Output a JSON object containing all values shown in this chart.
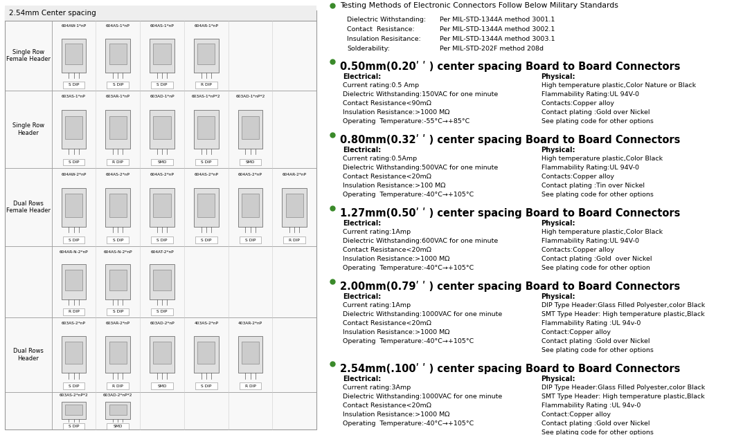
{
  "figsize": [
    10.6,
    6.29
  ],
  "dpi": 100,
  "left_panel": {
    "title": "2.54mm Center spacing",
    "rows": [
      {
        "label": "Single Row\nFemale Header",
        "items": [
          {
            "code": "604AW-1*nP",
            "mount": "S DIP"
          },
          {
            "code": "604AS-1*nP",
            "mount": "S DIP"
          },
          {
            "code": "604AS-1*nP",
            "mount": "S DIP"
          },
          {
            "code": "604AR-1*nP",
            "mount": "R DIP"
          },
          {
            "code": "",
            "mount": ""
          },
          {
            "code": "",
            "mount": ""
          }
        ]
      },
      {
        "label": "Single Row\nHeader",
        "items": [
          {
            "code": "603AS-1*nP",
            "mount": "S DIP"
          },
          {
            "code": "603AR-1*nP",
            "mount": "R DIP"
          },
          {
            "code": "603AD-1*nP",
            "mount": "SMD"
          },
          {
            "code": "603AS-1*nP*2",
            "mount": "S DIP"
          },
          {
            "code": "603AD-1*nP*2",
            "mount": "SMD"
          },
          {
            "code": "",
            "mount": ""
          }
        ]
      },
      {
        "label": "Dual Rows\nFemale Header",
        "items": [
          {
            "code": "604AW-2*nP",
            "mount": "S DIP"
          },
          {
            "code": "604AS-2*nP",
            "mount": "S DIP"
          },
          {
            "code": "604AS-2*nP",
            "mount": "S DIP"
          },
          {
            "code": "604AS-2*nP",
            "mount": "S DIP"
          },
          {
            "code": "604AS-2*nP",
            "mount": "S DIP"
          },
          {
            "code": "604AR-2*nP",
            "mount": "R DIP"
          }
        ]
      },
      {
        "label": "",
        "items": [
          {
            "code": "604AR-N-2*nP",
            "mount": "R DIP"
          },
          {
            "code": "604AS-N-2*nP",
            "mount": "S DIP"
          },
          {
            "code": "604AT-2*nP",
            "mount": "S DIP"
          },
          {
            "code": "",
            "mount": ""
          },
          {
            "code": "",
            "mount": ""
          },
          {
            "code": "",
            "mount": ""
          }
        ]
      },
      {
        "label": "Dual Rows\nHeader",
        "items": [
          {
            "code": "603AS-2*nP",
            "mount": "S DIP"
          },
          {
            "code": "603AR-2*nP",
            "mount": "R DIP"
          },
          {
            "code": "603AD-2*nP",
            "mount": "SMD"
          },
          {
            "code": "403AS-2*nP",
            "mount": "S DIP"
          },
          {
            "code": "403AR-2*nP",
            "mount": "R DIP"
          },
          {
            "code": "",
            "mount": ""
          }
        ]
      },
      {
        "label": "",
        "items": [
          {
            "code": "603AS-2*nP*2",
            "mount": "S DIP"
          },
          {
            "code": "603AD-2*nP*2",
            "mount": "SMD"
          },
          {
            "code": "",
            "mount": ""
          },
          {
            "code": "",
            "mount": ""
          },
          {
            "code": "",
            "mount": ""
          },
          {
            "code": "",
            "mount": ""
          }
        ]
      }
    ]
  },
  "right_panel": {
    "bullet_color": "#3a8a2a",
    "header_section": {
      "title": "Testing Methods of Electronic Connectors Follow Below Military Standards",
      "items": [
        {
          "label": "Dielectric Withstanding:",
          "value": "Per MIL-STD-1344A method 3001.1"
        },
        {
          "label": "Contact  Resistance:",
          "value": "Per MIL-STD-1344A method 3002.1"
        },
        {
          "label": "Insulation Resisitance:",
          "value": "Per MIL-STD-1344A method 3003.1"
        },
        {
          "label": "Solderability:",
          "value": "Per MIL-STD-202F method 208d"
        }
      ]
    },
    "connectors": [
      {
        "title": "0.50mm(0.20ʹ ʹ ) center spacing Board to Board Connectors",
        "electrical": [
          "Current rating:0.5 Amp",
          "Dielectric Withstanding:150VAC for one minute",
          "Contact Resistance<90mΩ",
          "Insulation Resistance:>1000 MΩ",
          "Operating  Temperature:-55°C→+85°C"
        ],
        "physical": [
          "High temperature plastic,Color Nature or Black",
          "Flammability Rating:UL 94V-0",
          "Contacts:Copper alloy",
          "Contact plating :Gold over Nickel",
          "See plating code for other options"
        ]
      },
      {
        "title": "0.80mm(0.32ʹ ʹ ) center spacing Board to Board Connectors",
        "electrical": [
          "Current rating:0.5Amp",
          "Dielectric Withstanding:500VAC for one minute",
          "Contact Resistance<20mΩ",
          "Insulation Resistance:>100 MΩ",
          "Operating  Temperature:-40°C→+105°C"
        ],
        "physical": [
          "High temperature plastic,Color Black",
          "Flammability Rating:UL 94V-0",
          "Contacts:Copper alloy",
          "Contact plating :Tin over Nickel",
          "See plating code for other options"
        ]
      },
      {
        "title": "1.27mm(0.50ʹ ʹ ) center spacing Board to Board Connectors",
        "electrical": [
          "Current rating:1Amp",
          "Dielectric Withstanding:600VAC for one minute",
          "Contact Resistance<20mΩ",
          "Insulation Resistance:>1000 MΩ",
          "Operating  Temperature:-40°C→+105°C"
        ],
        "physical": [
          "High temperature plastic,Color Black",
          "Flammability Rating:UL 94V-0",
          "Contacts:Copper alloy",
          "Contact plating :Gold  over Nickel",
          "See plating code for other option"
        ]
      },
      {
        "title": "2.00mm(0.79ʹ ʹ ) center spacing Board to Board Connectors",
        "electrical": [
          "Current rating:1Amp",
          "Dielectric Withstanding:1000VAC for one minute",
          "Contact Resistance<20mΩ",
          "Insulation Resistance:>1000 MΩ",
          "Operating  Temperature:-40°C→+105°C"
        ],
        "physical": [
          "DIP Type Header:Glass Filled Polyester,color Black",
          "SMT Type Header: High temperature plastic,Black",
          "Flammability Rating :UL 94v-0",
          "Contact:Copper alloy",
          "Contact plating :Gold over Nickel",
          "See plating code for other options"
        ]
      },
      {
        "title": "2.54mm(.100ʹ ʹ ) center spacing Board to Board Connectors",
        "electrical": [
          "Current rating:3Amp",
          "Dielectric Withstanding:1000VAC for one minute",
          "Contact Resistance<20mΩ",
          "Insulation Resistance:>1000 MΩ",
          "Operating  Temperature:-40°C→+105°C"
        ],
        "physical": [
          "DIP Type Header:Glass Filled Polyester,color Black",
          "SMT Type Header: High temperature plastic,Black",
          "Flammability Rating :UL 94v-0",
          "Contact:Copper alloy",
          "Contact plating :Gold over Nickel",
          "See plating code for other options"
        ]
      }
    ]
  }
}
